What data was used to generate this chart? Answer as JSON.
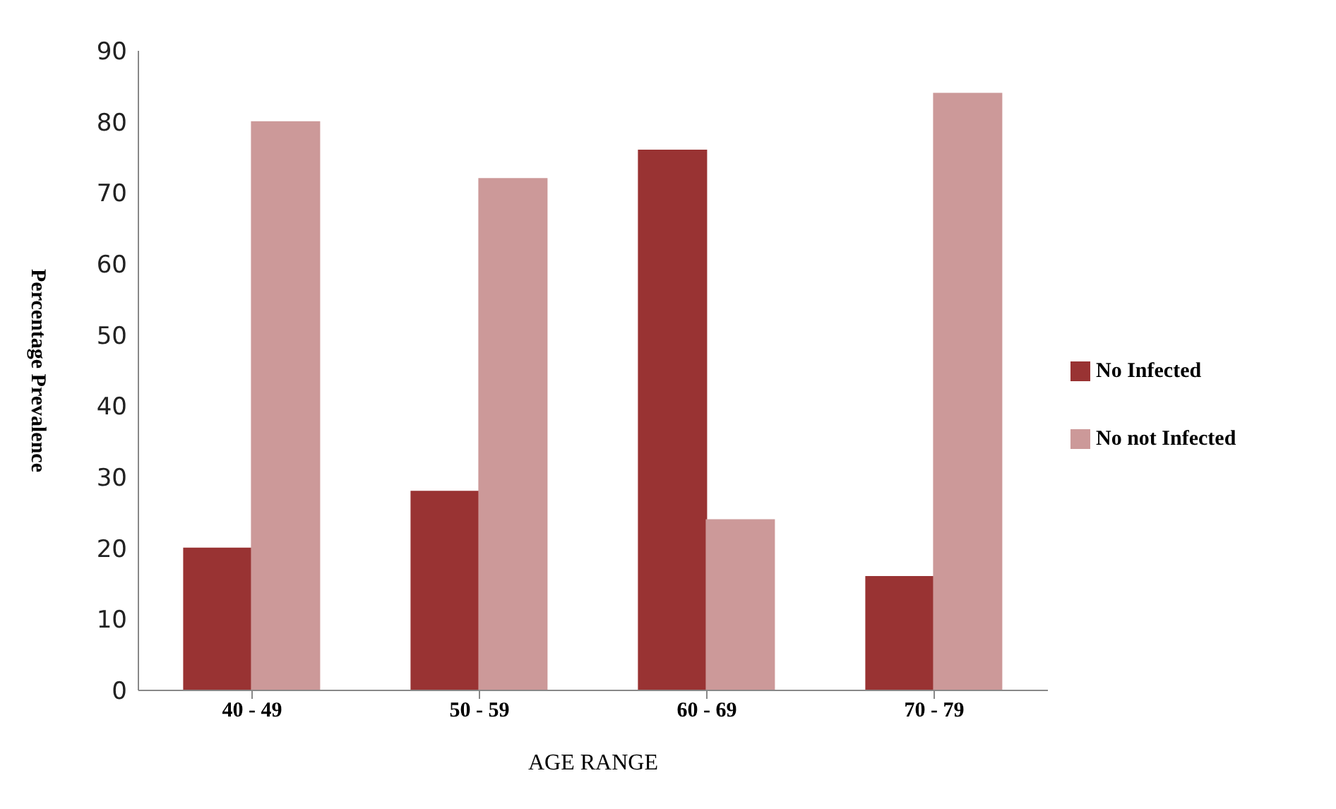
{
  "chart_data": {
    "type": "bar",
    "xlabel": "AGE RANGE",
    "ylabel": "Percentage Prevalence",
    "categories": [
      "40 - 49",
      "50 - 59",
      "60 - 69",
      "70 - 79"
    ],
    "series": [
      {
        "name": "No Infected",
        "color": "#993333",
        "values": [
          20,
          28,
          76,
          16
        ]
      },
      {
        "name": "No not Infected",
        "color": "#cc9999",
        "values": [
          80,
          72,
          24,
          84
        ]
      }
    ],
    "ylim": [
      0,
      90
    ],
    "yticks": [
      0,
      10,
      20,
      30,
      40,
      50,
      60,
      70,
      80,
      90
    ],
    "grid": false,
    "legend": "right"
  }
}
